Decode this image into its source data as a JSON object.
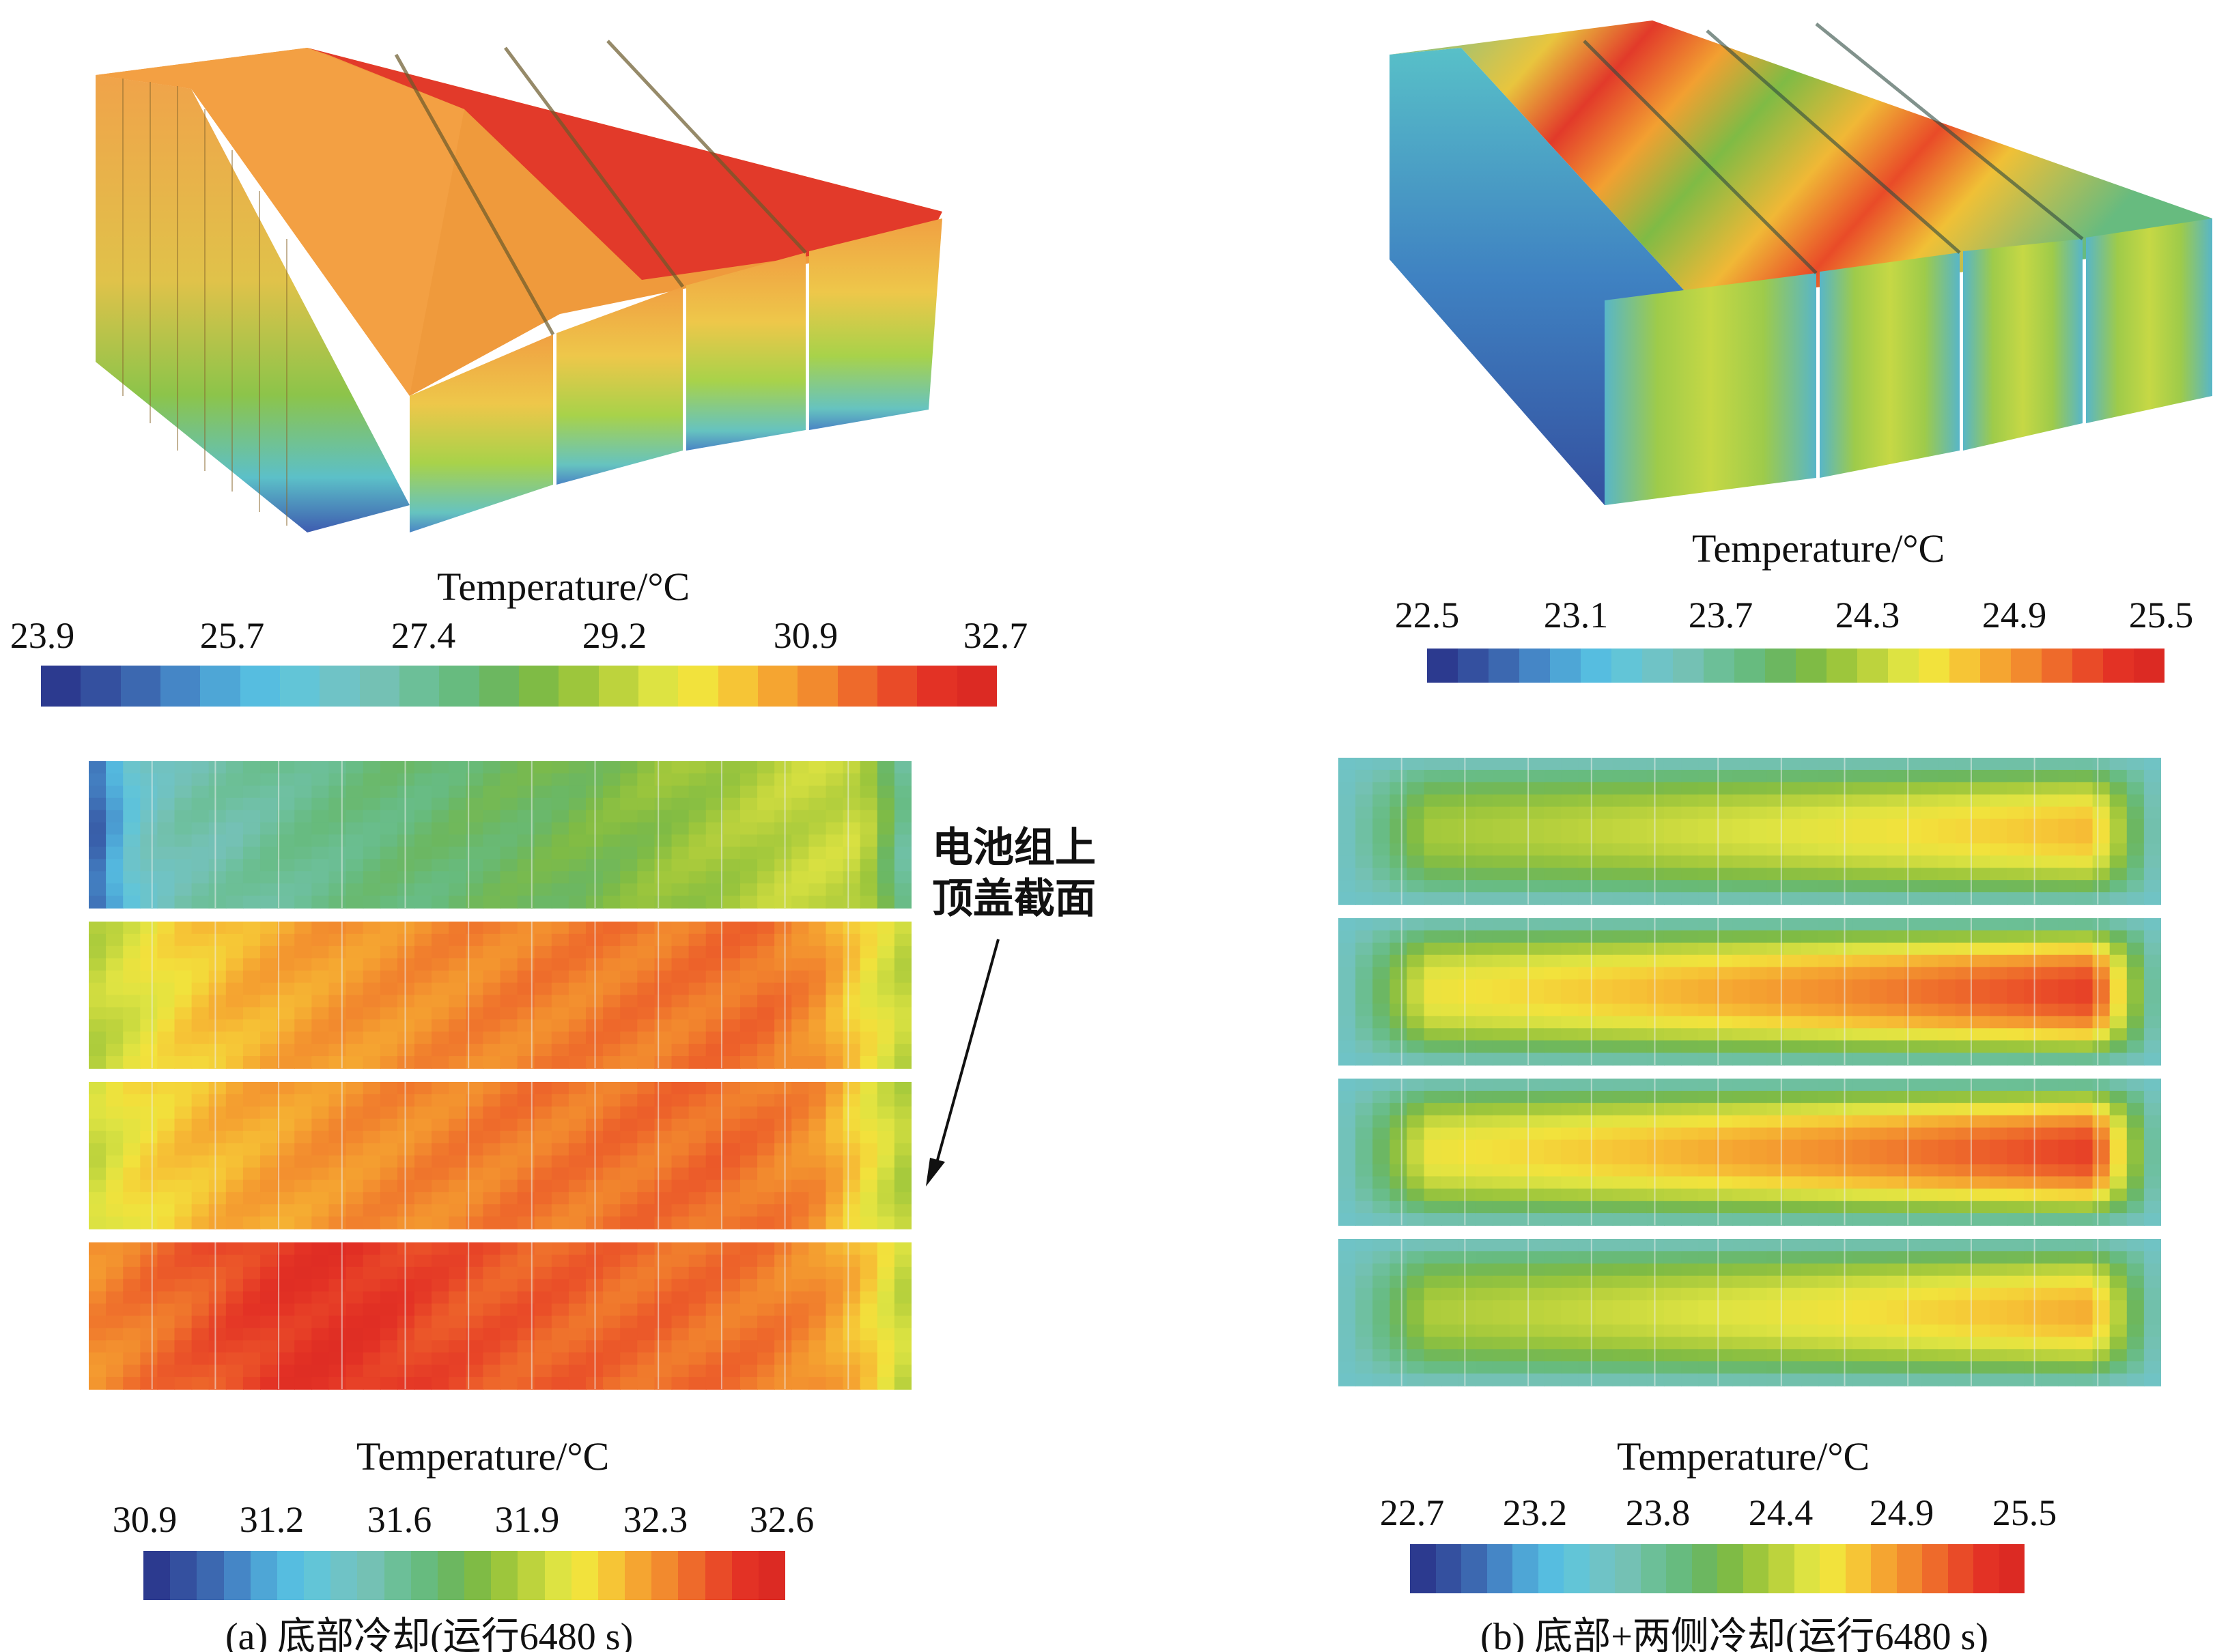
{
  "colors": {
    "scale": [
      "#2c3a8f",
      "#34509f",
      "#3c68b0",
      "#4586c6",
      "#4ea6d6",
      "#56bde0",
      "#62c5d7",
      "#6fc3c6",
      "#74c1b4",
      "#6cbf98",
      "#67bb7f",
      "#6cb760",
      "#7fbb45",
      "#9dc63c",
      "#bdd33d",
      "#dde342",
      "#f2e23c",
      "#f6c536",
      "#f5a531",
      "#f28a2e",
      "#ee6a2b",
      "#e94b28",
      "#e33225",
      "#dc2a23"
    ],
    "background": "#ffffff",
    "gap": "#ffffff",
    "separator": "#eef0ee"
  },
  "panel_a": {
    "top_colorbar": {
      "title": "Temperature/°C",
      "ticks": [
        "23.9",
        "25.7",
        "27.4",
        "29.2",
        "30.9",
        "32.7"
      ]
    },
    "bottom_colorbar": {
      "title": "Temperature/°C",
      "ticks": [
        "30.9",
        "31.2",
        "31.6",
        "31.9",
        "32.3",
        "32.6"
      ]
    },
    "annotation": {
      "line1": "电池组上",
      "line2": "顶盖截面"
    },
    "caption": "(a) 底部冷却(运行6480 s)",
    "heatmap_rows": [
      [
        0.05,
        0.3,
        0.36,
        0.37,
        0.4,
        0.42,
        0.44,
        0.45,
        0.47,
        0.48,
        0.5,
        0.52,
        0.55,
        0.57,
        0.6,
        0.62,
        0.62,
        0.35
      ],
      [
        0.6,
        0.66,
        0.72,
        0.76,
        0.78,
        0.8,
        0.81,
        0.82,
        0.83,
        0.84,
        0.84,
        0.85,
        0.85,
        0.86,
        0.86,
        0.82,
        0.7,
        0.6
      ],
      [
        0.62,
        0.7,
        0.74,
        0.77,
        0.79,
        0.81,
        0.82,
        0.83,
        0.84,
        0.85,
        0.85,
        0.86,
        0.86,
        0.87,
        0.85,
        0.82,
        0.7,
        0.58
      ],
      [
        0.82,
        0.85,
        0.88,
        0.92,
        0.95,
        0.96,
        0.95,
        0.92,
        0.9,
        0.89,
        0.88,
        0.87,
        0.87,
        0.86,
        0.85,
        0.82,
        0.74,
        0.6
      ]
    ]
  },
  "panel_b": {
    "top_colorbar": {
      "title": "Temperature/°C",
      "ticks": [
        "22.5",
        "23.1",
        "23.7",
        "24.3",
        "24.9",
        "25.5"
      ]
    },
    "bottom_colorbar": {
      "title": "Temperature/°C",
      "ticks": [
        "22.7",
        "23.2",
        "23.8",
        "24.4",
        "24.9",
        "25.5"
      ]
    },
    "caption": "(b) 底部+两侧冷却(运行6480 s)",
    "heatmap_row_peaks": [
      0.78,
      0.97,
      0.97,
      0.8
    ]
  }
}
